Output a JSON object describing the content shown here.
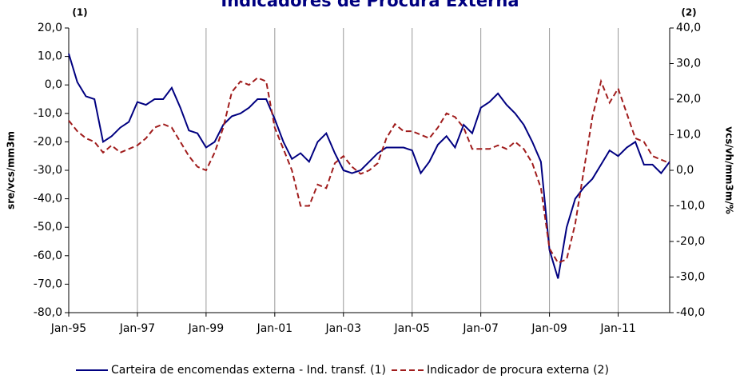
{
  "chart_data": {
    "type": "line",
    "title": "Indicadores de Procura Externa",
    "annotations": [
      "(1)",
      "(2)"
    ],
    "ylabel": "sre/vcs/mm3m",
    "y2label": "vcs/vh/mm3m/%",
    "categories": [
      "Jan-95",
      null,
      null,
      null,
      null,
      null,
      null,
      null,
      "Jan-97",
      null,
      null,
      null,
      null,
      null,
      null,
      null,
      "Jan-99",
      null,
      null,
      null,
      null,
      null,
      null,
      null,
      "Jan-01",
      null,
      null,
      null,
      null,
      null,
      null,
      null,
      "Jan-03",
      null,
      null,
      null,
      null,
      null,
      null,
      null,
      "Jan-05",
      null,
      null,
      null,
      null,
      null,
      null,
      null,
      "Jan-07",
      null,
      null,
      null,
      null,
      null,
      null,
      null,
      "Jan-09",
      null,
      null,
      null,
      null,
      null,
      null,
      null,
      "Jan-11",
      null,
      null,
      null,
      null,
      null,
      null
    ],
    "series": [
      {
        "name": "Carteira de encomendas externa - Ind. transf. (1)",
        "color": "#000080",
        "dash": false,
        "axis": "y",
        "values": [
          11,
          1,
          -4,
          -5,
          -20,
          -18,
          -15,
          -13,
          -6,
          -7,
          -5,
          -5,
          -1,
          -8,
          -16,
          -17,
          -22,
          -20,
          -14,
          -11,
          -10,
          -8,
          -5,
          -5,
          -12,
          -20,
          -26,
          -24,
          -27,
          -20,
          -17,
          -24,
          -30,
          -31,
          -30,
          -27,
          -24,
          -22,
          -22,
          -22,
          -23,
          -31,
          -27,
          -21,
          -18,
          -22,
          -14,
          -17,
          -8,
          -6,
          -3,
          -7,
          -10,
          -14,
          -20,
          -27,
          -58,
          -68,
          -50,
          -40,
          -36,
          -33,
          -28,
          -23,
          -25,
          -22,
          -20,
          -28,
          -28,
          -31,
          -27
        ]
      },
      {
        "name": "Indicador de procura externa (2)",
        "color": "#a01c1c",
        "dash": true,
        "axis": "y2",
        "values": [
          14,
          11,
          9,
          8,
          5,
          7,
          5,
          6,
          7,
          9,
          12,
          13,
          12,
          8,
          4,
          1,
          0,
          5,
          12,
          22,
          25,
          24,
          26,
          25,
          12,
          6,
          0,
          -10,
          -10,
          -4,
          -5,
          2,
          4,
          1,
          -1,
          0,
          2,
          9,
          13,
          11,
          11,
          10,
          9,
          12,
          16,
          15,
          12,
          6,
          6,
          6,
          7,
          6,
          8,
          6,
          2,
          -5,
          -22,
          -26,
          -25,
          -15,
          0,
          15,
          25,
          19,
          23,
          16,
          9,
          8,
          4,
          3,
          2
        ]
      }
    ],
    "ylim": [
      -80,
      20
    ],
    "yticks": [
      {
        "value": 20,
        "label": "20,0"
      },
      {
        "value": 10,
        "label": "10,0"
      },
      {
        "value": 0,
        "label": "0,0"
      },
      {
        "value": -10,
        "label": "-10,0"
      },
      {
        "value": -20,
        "label": "-20,0"
      },
      {
        "value": -30,
        "label": "-30,0"
      },
      {
        "value": -40,
        "label": "-40,0"
      },
      {
        "value": -50,
        "label": "-50,0"
      },
      {
        "value": -60,
        "label": "-60,0"
      },
      {
        "value": -70,
        "label": "-70,0"
      },
      {
        "value": -80,
        "label": "-80,0"
      }
    ],
    "y2lim": [
      -40,
      40
    ],
    "y2ticks": [
      {
        "value": 40,
        "label": "40,0"
      },
      {
        "value": 30,
        "label": "30,0"
      },
      {
        "value": 20,
        "label": "20,0"
      },
      {
        "value": 10,
        "label": "10,0"
      },
      {
        "value": 0,
        "label": "0,0"
      },
      {
        "value": -10,
        "label": "-10,0"
      },
      {
        "value": -20,
        "label": "-20,0"
      },
      {
        "value": -30,
        "label": "-30,0"
      },
      {
        "value": -40,
        "label": "-40,0"
      }
    ],
    "grid": true
  }
}
